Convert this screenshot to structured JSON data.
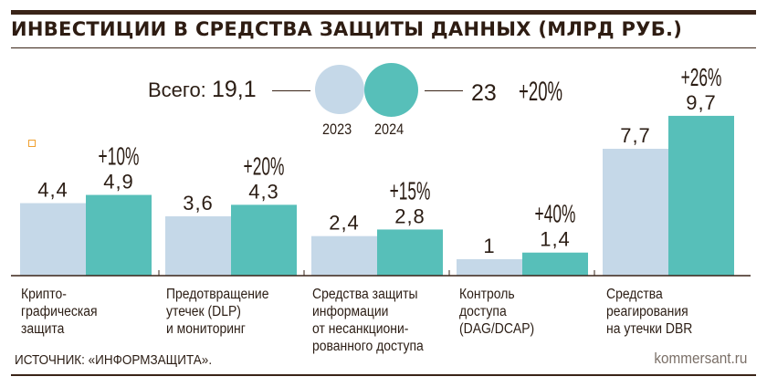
{
  "title": "ИНВЕСТИЦИИ В СРЕДСТВА ЗАЩИТЫ ДАННЫХ (МЛРД РУБ.)",
  "totals": {
    "label": "Всего:",
    "value_2023": "19,1",
    "value_2024": "23",
    "change": "+20%"
  },
  "legend": {
    "year_2023": "2023",
    "year_2024": "2024"
  },
  "colors": {
    "series_2023": "#c5d8e8",
    "series_2024": "#57bfb9",
    "text": "#2b1d14",
    "rule": "#3a2418"
  },
  "categories_text": [
    [
      "Крипто-",
      "графическая",
      "защита"
    ],
    [
      "Предотвращение",
      "утечек (DLP)",
      "и мониторинг"
    ],
    [
      "Средства защиты",
      "информации",
      "от несанкциони-",
      "рованного доступа"
    ],
    [
      "Контроль",
      "доступа",
      "(DAG/DCAP)"
    ],
    [
      "Средства",
      "реагирования",
      "на утечки DBR"
    ]
  ],
  "source": "ИСТОЧНИК: «ИНФОРМЗАЩИТА».",
  "brand": "kommersant.ru",
  "chart_data": {
    "type": "bar",
    "title": "ИНВЕСТИЦИИ В СРЕДСТВА ЗАЩИТЫ ДАННЫХ (МЛРД РУБ.)",
    "categories": [
      "Криптографическая защита",
      "Предотвращение утечек (DLP) и мониторинг",
      "Средства защиты информации от несанкционированного доступа",
      "Контроль доступа (DAG/DCAP)",
      "Средства реагирования на утечки DBR"
    ],
    "series": [
      {
        "name": "2023",
        "values": [
          4.4,
          3.6,
          2.4,
          1,
          7.7
        ],
        "labels": [
          "4,4",
          "3,6",
          "2,4",
          "1",
          "7,7"
        ]
      },
      {
        "name": "2024",
        "values": [
          4.9,
          4.3,
          2.8,
          1.4,
          9.7
        ],
        "labels": [
          "4,9",
          "4,3",
          "2,8",
          "1,4",
          "9,7"
        ]
      }
    ],
    "changes": [
      "+10%",
      "+20%",
      "+15%",
      "+40%",
      "+26%"
    ],
    "unit": "млрд руб.",
    "xlabel": "",
    "ylabel": "",
    "ylim": [
      0,
      10
    ],
    "grid": false
  }
}
